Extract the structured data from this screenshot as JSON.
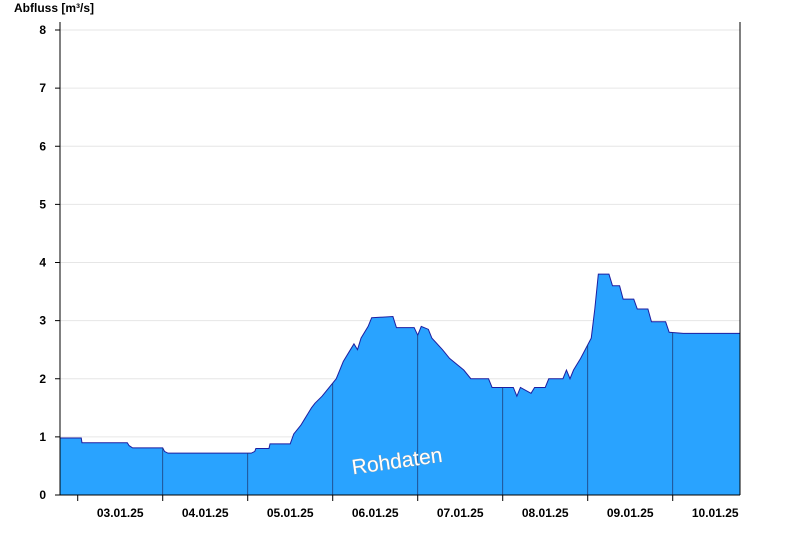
{
  "chart_data": {
    "type": "area",
    "ylabel": "Abfluss [m³/s]",
    "xlabel": "",
    "title": "",
    "ylim": [
      0,
      8
    ],
    "yticks": [
      "0",
      "1",
      "2",
      "3",
      "4",
      "5",
      "6",
      "7",
      "8"
    ],
    "x_unit": "hours since 02.01.25 19:00",
    "xlim": [
      0,
      192
    ],
    "x_tick_labels": [
      "03.01.25",
      "04.01.25",
      "05.01.25",
      "06.01.25",
      "07.01.25",
      "08.01.25",
      "09.01.25",
      "10.01.25"
    ],
    "annotation": "Rohdaten",
    "grid": true,
    "fill_color": "#29A3FF",
    "line_color": "#1E1EA0",
    "series": [
      {
        "values": [
          [
            0,
            0.98
          ],
          [
            6,
            0.98
          ],
          [
            6.2,
            0.9
          ],
          [
            19,
            0.9
          ],
          [
            19.5,
            0.85
          ],
          [
            20.5,
            0.81
          ],
          [
            29,
            0.81
          ],
          [
            29.5,
            0.75
          ],
          [
            30.5,
            0.72
          ],
          [
            54,
            0.72
          ],
          [
            55,
            0.75
          ],
          [
            55.3,
            0.8
          ],
          [
            59,
            0.8
          ],
          [
            59.3,
            0.88
          ],
          [
            65,
            0.88
          ],
          [
            66,
            1.05
          ],
          [
            68,
            1.2
          ],
          [
            69,
            1.3
          ],
          [
            70,
            1.4
          ],
          [
            71,
            1.5
          ],
          [
            72,
            1.58
          ],
          [
            74,
            1.7
          ],
          [
            76,
            1.85
          ],
          [
            78,
            2.0
          ],
          [
            79,
            2.15
          ],
          [
            80,
            2.3
          ],
          [
            82,
            2.5
          ],
          [
            83,
            2.6
          ],
          [
            84,
            2.5
          ],
          [
            85,
            2.7
          ],
          [
            87,
            2.9
          ],
          [
            88,
            3.05
          ],
          [
            94,
            3.07
          ],
          [
            95,
            2.88
          ],
          [
            100,
            2.88
          ],
          [
            101,
            2.75
          ],
          [
            102,
            2.9
          ],
          [
            104,
            2.85
          ],
          [
            105,
            2.7
          ],
          [
            108,
            2.5
          ],
          [
            110,
            2.35
          ],
          [
            114,
            2.15
          ],
          [
            116,
            2.0
          ],
          [
            121,
            2.0
          ],
          [
            122,
            1.85
          ],
          [
            128,
            1.85
          ],
          [
            129,
            1.7
          ],
          [
            130,
            1.85
          ],
          [
            133,
            1.75
          ],
          [
            134,
            1.85
          ],
          [
            137,
            1.85
          ],
          [
            138,
            2.0
          ],
          [
            142,
            2.0
          ],
          [
            143,
            2.15
          ],
          [
            144,
            2.0
          ],
          [
            145,
            2.15
          ],
          [
            147,
            2.35
          ],
          [
            150,
            2.7
          ],
          [
            151,
            3.2
          ],
          [
            152,
            3.8
          ],
          [
            155,
            3.8
          ],
          [
            156,
            3.6
          ],
          [
            158,
            3.6
          ],
          [
            159,
            3.37
          ],
          [
            162,
            3.37
          ],
          [
            163,
            3.2
          ],
          [
            166,
            3.2
          ],
          [
            167,
            2.98
          ],
          [
            171,
            2.98
          ],
          [
            172,
            2.8
          ],
          [
            176,
            2.78
          ],
          [
            192,
            2.78
          ]
        ]
      }
    ]
  }
}
